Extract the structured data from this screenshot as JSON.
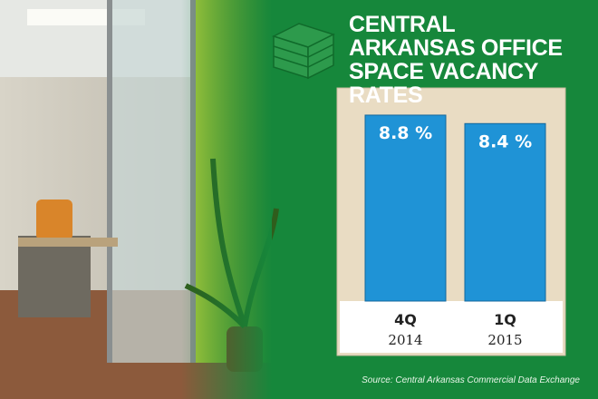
{
  "chart_data": {
    "type": "bar",
    "title": "CENTRAL ARKANSAS OFFICE SPACE VACANCY RATES",
    "categories": [
      "4Q",
      "1Q"
    ],
    "category_years": [
      "2014",
      "2015"
    ],
    "values": [
      8.8,
      8.4
    ],
    "value_labels": [
      "8.8 %",
      "8.4 %"
    ],
    "color": "#1f93d6",
    "source": "Source: Central Arkansas Commercial Data Exchange"
  }
}
